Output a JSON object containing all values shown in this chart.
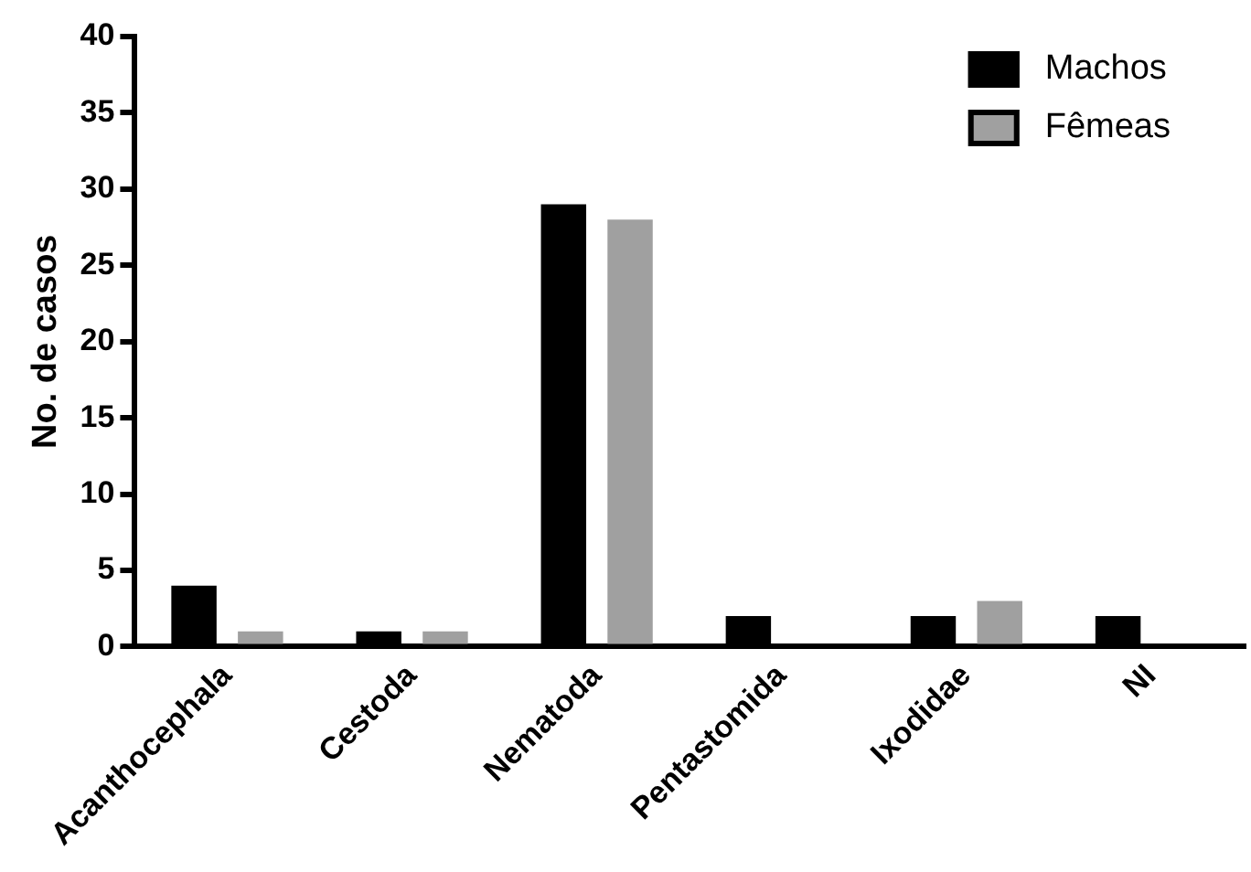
{
  "chart_data": {
    "type": "bar",
    "ylabel": "No. de casos",
    "categories": [
      "Acanthocephala",
      "Cestoda",
      "Nematoda",
      "Pentastomida",
      "Ixodidae",
      "NI"
    ],
    "series": [
      {
        "name": "Machos",
        "color": "#000000",
        "values": [
          4,
          1,
          29,
          2,
          2,
          2
        ]
      },
      {
        "name": "Fêmeas",
        "color": "#a0a0a0",
        "values": [
          1,
          1,
          28,
          0,
          3,
          0
        ]
      }
    ],
    "ylim": [
      0,
      40
    ],
    "yticks": [
      0,
      5,
      10,
      15,
      20,
      25,
      30,
      35,
      40
    ],
    "grid": false,
    "legend": "top right"
  }
}
